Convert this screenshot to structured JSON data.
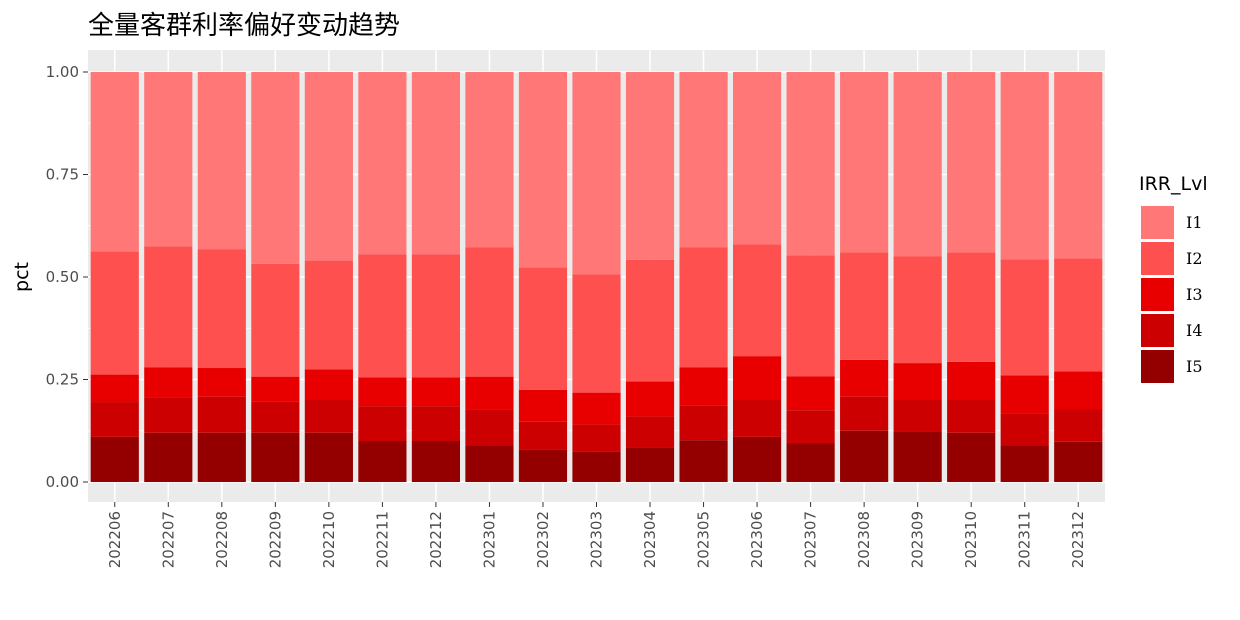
{
  "chart_data": {
    "type": "bar",
    "stacked": true,
    "title": "全量客群利率偏好变动趋势",
    "xlabel": "",
    "ylabel": "pct",
    "ylim": [
      0,
      1
    ],
    "yticks": [
      "0.00",
      "0.25",
      "0.50",
      "0.75",
      "1.00"
    ],
    "grid": true,
    "legend_position": "right",
    "legend_title": "IRR_Lvl",
    "categories": [
      "202206",
      "202207",
      "202208",
      "202209",
      "202210",
      "202211",
      "202212",
      "202301",
      "202302",
      "202303",
      "202304",
      "202305",
      "202306",
      "202307",
      "202308",
      "202309",
      "202310",
      "202311",
      "202312"
    ],
    "series": [
      {
        "name": "I5",
        "color": "#940000",
        "values": [
          0.11,
          0.12,
          0.12,
          0.12,
          0.12,
          0.1,
          0.1,
          0.09,
          0.08,
          0.075,
          0.083,
          0.102,
          0.11,
          0.095,
          0.125,
          0.122,
          0.12,
          0.09,
          0.098
        ]
      },
      {
        "name": "I4",
        "color": "#cc0000",
        "values": [
          0.085,
          0.085,
          0.088,
          0.077,
          0.08,
          0.085,
          0.085,
          0.087,
          0.067,
          0.065,
          0.077,
          0.085,
          0.09,
          0.08,
          0.083,
          0.078,
          0.08,
          0.078,
          0.08
        ]
      },
      {
        "name": "I3",
        "color": "#e80000",
        "values": [
          0.067,
          0.075,
          0.07,
          0.06,
          0.075,
          0.07,
          0.07,
          0.08,
          0.078,
          0.078,
          0.085,
          0.093,
          0.107,
          0.083,
          0.09,
          0.09,
          0.093,
          0.092,
          0.092
        ]
      },
      {
        "name": "I2",
        "color": "#ff5050",
        "values": [
          0.3,
          0.295,
          0.29,
          0.275,
          0.265,
          0.3,
          0.3,
          0.315,
          0.298,
          0.288,
          0.297,
          0.292,
          0.273,
          0.295,
          0.262,
          0.26,
          0.267,
          0.283,
          0.275
        ]
      },
      {
        "name": "I1",
        "color": "#ff7777",
        "values": [
          0.438,
          0.425,
          0.432,
          0.468,
          0.46,
          0.445,
          0.445,
          0.428,
          0.477,
          0.494,
          0.458,
          0.428,
          0.42,
          0.447,
          0.44,
          0.45,
          0.44,
          0.457,
          0.455
        ]
      }
    ],
    "legend_order": [
      "I1",
      "I2",
      "I3",
      "I4",
      "I5"
    ]
  },
  "colors": {
    "panel_background": "#ebebeb",
    "grid_major": "#ffffff",
    "tick_text": "#4d4d4d"
  }
}
